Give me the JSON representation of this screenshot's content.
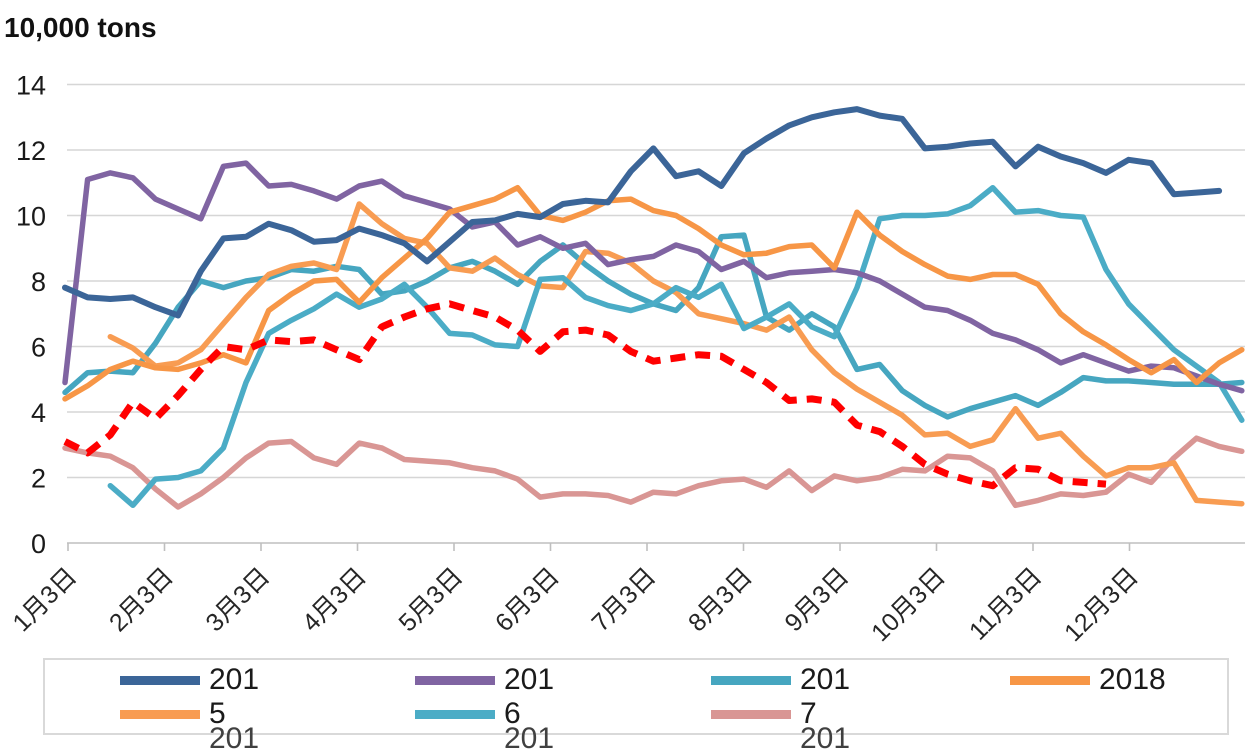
{
  "title": "10,000 tons",
  "chart_data": {
    "type": "line",
    "title": "10,000 tons",
    "xlabel": "",
    "ylabel": "10,000 tons",
    "ylim": [
      0,
      14
    ],
    "y_ticks": [
      0,
      2,
      4,
      6,
      8,
      10,
      12,
      14
    ],
    "x_tick_labels": [
      "1月3日",
      "2月3日",
      "3月3日",
      "4月3日",
      "5月3日",
      "6月3日",
      "7月3日",
      "8月3日",
      "9月3日",
      "10月3日",
      "11月3日",
      "12月3日"
    ],
    "grid": "horizontal",
    "legend_position": "bottom-box",
    "x_unit": "weekly points, Jan through Dec",
    "points_per_series": 53,
    "series": [
      {
        "id": "series-navy",
        "legend_label": "201",
        "color": "#3B6598",
        "dash": null,
        "width": 6,
        "values": [
          7.8,
          7.5,
          7.45,
          7.5,
          7.2,
          6.95,
          8.3,
          9.3,
          9.35,
          9.75,
          9.55,
          9.2,
          9.25,
          9.6,
          9.4,
          9.15,
          8.6,
          9.2,
          9.8,
          9.85,
          10.05,
          9.95,
          10.35,
          10.45,
          10.4,
          11.35,
          12.05,
          11.2,
          11.35,
          10.9,
          11.9,
          12.35,
          12.75,
          13.0,
          13.15,
          13.25,
          13.05,
          12.95,
          12.05,
          12.1,
          12.2,
          12.25,
          11.5,
          12.1,
          11.8,
          11.6,
          11.3,
          11.7,
          11.6,
          10.65,
          10.7,
          10.75,
          null
        ]
      },
      {
        "id": "series-purple",
        "legend_label": "201",
        "color": "#8064A2",
        "dash": null,
        "width": 5.5,
        "values": [
          4.9,
          11.1,
          11.3,
          11.15,
          10.5,
          10.2,
          9.9,
          11.5,
          11.6,
          10.9,
          10.95,
          10.75,
          10.5,
          10.9,
          11.05,
          10.6,
          10.4,
          10.2,
          9.65,
          9.8,
          9.1,
          9.35,
          9.0,
          9.15,
          8.5,
          8.65,
          8.75,
          9.1,
          8.9,
          8.35,
          8.6,
          8.1,
          8.25,
          8.3,
          8.35,
          8.25,
          8.0,
          7.6,
          7.2,
          7.1,
          6.8,
          6.4,
          6.2,
          5.9,
          5.5,
          5.75,
          5.5,
          5.25,
          5.4,
          5.35,
          5.1,
          4.85,
          4.65
        ]
      },
      {
        "id": "series-teal-a",
        "legend_label": "201",
        "color": "#46A6C0",
        "dash": null,
        "width": 5.5,
        "values": [
          4.6,
          5.2,
          5.25,
          5.2,
          6.1,
          7.2,
          8.0,
          7.8,
          8.0,
          8.1,
          8.35,
          8.3,
          8.45,
          8.35,
          7.6,
          7.7,
          8.0,
          8.4,
          8.6,
          8.3,
          7.9,
          8.6,
          9.1,
          8.5,
          8.0,
          7.6,
          7.3,
          7.1,
          7.8,
          9.35,
          9.4,
          6.9,
          6.5,
          7.0,
          6.6,
          5.3,
          5.45,
          4.65,
          4.2,
          3.85,
          4.1,
          4.3,
          4.5,
          4.2,
          4.6,
          5.05,
          4.95,
          4.95,
          4.9,
          4.85,
          4.85,
          4.85,
          4.9
        ]
      },
      {
        "id": "series-orange-2018",
        "legend_label": "2018",
        "color": "#F79646",
        "dash": null,
        "width": 5.5,
        "values": [
          4.4,
          4.8,
          5.3,
          5.55,
          5.35,
          5.3,
          5.5,
          5.75,
          5.5,
          7.1,
          7.6,
          8.0,
          8.05,
          7.35,
          8.1,
          8.7,
          9.3,
          10.1,
          10.3,
          10.5,
          10.85,
          10.0,
          9.85,
          10.1,
          10.45,
          10.5,
          10.15,
          10.0,
          9.6,
          9.1,
          8.8,
          8.85,
          9.05,
          9.1,
          8.4,
          10.1,
          9.4,
          8.9,
          8.5,
          8.15,
          8.05,
          8.2,
          8.2,
          7.9,
          7.0,
          6.45,
          6.05,
          5.6,
          5.2,
          5.6,
          4.9,
          5.5,
          5.9
        ]
      },
      {
        "id": "series-orange-light",
        "legend_label": "5",
        "color": "#F89C52",
        "dash": null,
        "width": 5.5,
        "values": [
          null,
          null,
          6.3,
          5.95,
          5.4,
          5.5,
          5.9,
          6.7,
          7.5,
          8.2,
          8.45,
          8.55,
          8.35,
          10.35,
          9.75,
          9.3,
          9.15,
          8.4,
          8.3,
          8.7,
          8.2,
          7.85,
          7.8,
          8.9,
          8.85,
          8.55,
          8.0,
          7.65,
          7.0,
          6.85,
          6.7,
          6.5,
          6.9,
          5.9,
          5.2,
          4.7,
          4.3,
          3.9,
          3.3,
          3.35,
          2.95,
          3.15,
          4.1,
          3.2,
          3.35,
          2.65,
          2.05,
          2.3,
          2.3,
          2.45,
          1.3,
          1.25,
          1.2
        ]
      },
      {
        "id": "series-teal-b",
        "legend_label": "6",
        "color": "#4BACC6",
        "dash": null,
        "width": 5.5,
        "values": [
          null,
          null,
          1.75,
          1.15,
          1.95,
          2.0,
          2.2,
          2.9,
          4.9,
          6.4,
          6.8,
          7.15,
          7.6,
          7.2,
          7.45,
          7.9,
          7.2,
          6.4,
          6.35,
          6.05,
          6.0,
          8.05,
          8.1,
          7.5,
          7.25,
          7.1,
          7.3,
          7.8,
          7.5,
          7.9,
          6.55,
          6.9,
          7.3,
          6.6,
          6.3,
          7.8,
          9.9,
          10.0,
          10.0,
          10.05,
          10.3,
          10.85,
          10.1,
          10.15,
          10.0,
          9.95,
          8.35,
          7.3,
          6.6,
          5.9,
          5.4,
          4.9,
          3.75
        ]
      },
      {
        "id": "series-pink",
        "legend_label": "7",
        "color": "#D99694",
        "dash": null,
        "width": 5.5,
        "values": [
          2.9,
          2.75,
          2.65,
          2.3,
          1.65,
          1.1,
          1.5,
          2.0,
          2.6,
          3.05,
          3.1,
          2.6,
          2.4,
          3.05,
          2.9,
          2.55,
          2.5,
          2.45,
          2.3,
          2.2,
          1.95,
          1.4,
          1.5,
          1.5,
          1.45,
          1.25,
          1.55,
          1.5,
          1.75,
          1.9,
          1.95,
          1.7,
          2.2,
          1.6,
          2.05,
          1.9,
          2.0,
          2.25,
          2.2,
          2.65,
          2.6,
          2.2,
          1.15,
          1.3,
          1.5,
          1.45,
          1.55,
          2.1,
          1.85,
          2.6,
          3.2,
          2.95,
          2.8
        ]
      },
      {
        "id": "series-red-dashed",
        "legend_label": "",
        "color": "#FF0000",
        "dash": "15 10",
        "width": 7,
        "values": [
          3.1,
          2.75,
          3.3,
          4.3,
          3.8,
          4.5,
          5.3,
          6.0,
          5.9,
          6.2,
          6.15,
          6.2,
          5.9,
          5.6,
          6.6,
          6.9,
          7.15,
          7.3,
          7.1,
          6.9,
          6.5,
          5.85,
          6.45,
          6.5,
          6.35,
          5.85,
          5.55,
          5.65,
          5.75,
          5.7,
          5.3,
          4.9,
          4.35,
          4.4,
          4.3,
          3.6,
          3.4,
          2.95,
          2.4,
          2.1,
          1.9,
          1.75,
          2.3,
          2.25,
          1.9,
          1.85,
          1.8,
          null,
          null,
          null,
          null,
          null,
          null
        ]
      }
    ]
  },
  "legend": {
    "rows": [
      [
        {
          "swatch": "#3B6598",
          "label": "201"
        },
        {
          "swatch": "#8064A2",
          "label": "201"
        },
        {
          "swatch": "#46A6C0",
          "label": "201"
        },
        {
          "swatch": "#F79646",
          "label": "2018"
        }
      ],
      [
        {
          "swatch": "#F89C52",
          "label": "5"
        },
        {
          "swatch": "#4BACC6",
          "label": "6"
        },
        {
          "swatch": "#D99694",
          "label": "7"
        }
      ],
      [
        {
          "swatch": null,
          "label": "201"
        },
        {
          "swatch": null,
          "label": "201"
        },
        {
          "swatch": null,
          "label": "201"
        }
      ]
    ]
  },
  "colors": {
    "gridline": "#D6D6D6",
    "axis_line": "#BFBFBF",
    "tick_text": "#262626",
    "legend_border": "#D9D9D9"
  }
}
